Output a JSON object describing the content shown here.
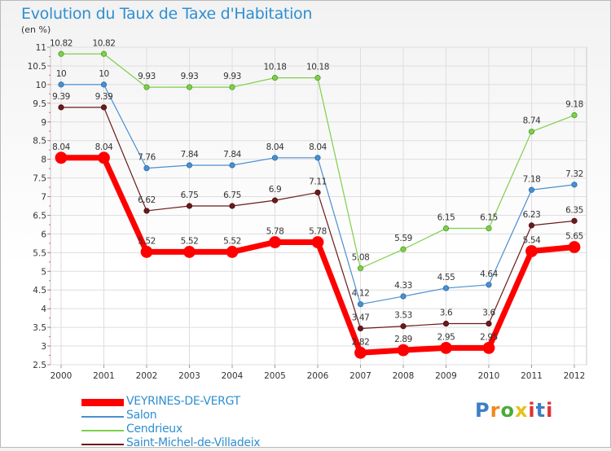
{
  "title": "Evolution du Taux de Taxe d'Habitation",
  "unit_label": "(en %)",
  "logo_text": "Proxiti",
  "colors": {
    "VEYRINES-DE-VERGT": "#ff0000",
    "Salon": "#4a8fd0",
    "Cendrieux": "#7ecf4a",
    "Saint-Michel-de-Villadeix": "#6b1a1a"
  },
  "chart_data": {
    "type": "line",
    "x": [
      "2000",
      "2001",
      "2002",
      "2003",
      "2004",
      "2005",
      "2006",
      "2007",
      "2008",
      "2009",
      "2010",
      "2011",
      "2012"
    ],
    "ylim": [
      2.5,
      11
    ],
    "y_ticks": [
      "2.5",
      "3",
      "3.5",
      "4",
      "4.5",
      "5",
      "5.5",
      "6",
      "6.5",
      "7",
      "7.5",
      "8",
      "8.5",
      "9",
      "9.5",
      "10",
      "10.5",
      "11"
    ],
    "grid": true,
    "legend_position": "bottom-left",
    "series": [
      {
        "name": "VEYRINES-DE-VERGT",
        "values": [
          8.04,
          8.04,
          5.52,
          5.52,
          5.52,
          5.78,
          5.78,
          2.82,
          2.89,
          2.95,
          2.95,
          5.54,
          5.65
        ],
        "labels": [
          "8.04",
          "8.04",
          "5.52",
          "5.52",
          "5.52",
          "5.78",
          "5.78",
          "2.82",
          "2.89",
          "2.95",
          "2.95",
          "5.54",
          "5.65"
        ]
      },
      {
        "name": "Salon",
        "values": [
          10,
          10,
          7.76,
          7.84,
          7.84,
          8.04,
          8.04,
          4.12,
          4.33,
          4.55,
          4.64,
          7.18,
          7.32
        ],
        "labels": [
          "10",
          "10",
          "7.76",
          "7.84",
          "7.84",
          "8.04",
          "8.04",
          "4.12",
          "4.33",
          "4.55",
          "4.64",
          "7.18",
          "7.32"
        ]
      },
      {
        "name": "Cendrieux",
        "values": [
          10.82,
          10.82,
          9.93,
          9.93,
          9.93,
          10.18,
          10.18,
          5.08,
          5.59,
          6.15,
          6.15,
          8.74,
          9.18
        ],
        "labels": [
          "10.82",
          "10.82",
          "9.93",
          "9.93",
          "9.93",
          "10.18",
          "10.18",
          "5.08",
          "5.59",
          "6.15",
          "6.15",
          "8.74",
          "9.18"
        ]
      },
      {
        "name": "Saint-Michel-de-Villadeix",
        "values": [
          9.39,
          9.39,
          6.62,
          6.75,
          6.75,
          6.9,
          7.11,
          3.47,
          3.53,
          3.6,
          3.6,
          6.23,
          6.35
        ],
        "labels": [
          "9.39",
          "9.39",
          "6.62",
          "6.75",
          "6.75",
          "6.9",
          "7.11",
          "3.47",
          "3.53",
          "3.6",
          "3.6",
          "6.23",
          "6.35"
        ]
      }
    ]
  }
}
